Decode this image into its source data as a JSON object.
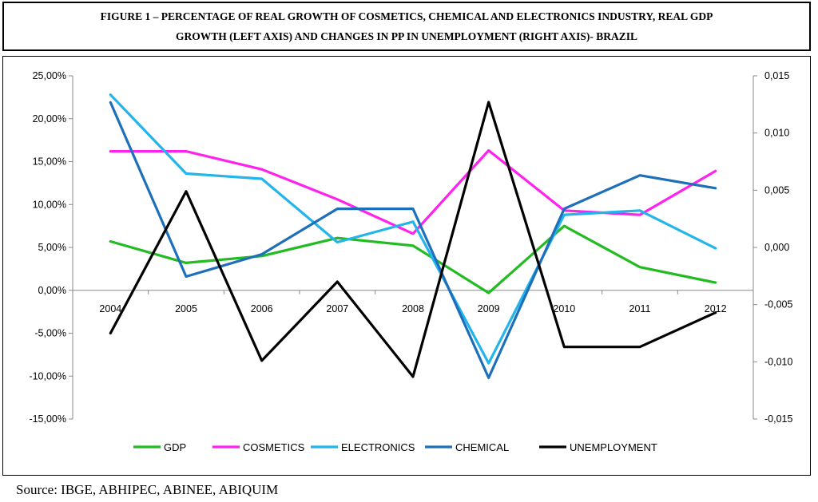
{
  "title": {
    "line1": "FIGURE 1 – PERCENTAGE OF REAL GROWTH OF COSMETICS, CHEMICAL AND ELECTRONICS INDUSTRY, REAL GDP",
    "line2": "GROWTH (LEFT AXIS) AND CHANGES IN PP IN UNEMPLOYMENT (RIGHT AXIS)- BRAZIL"
  },
  "source": "Source: IBGE, ABHIPEC, ABINEE, ABIQUIM",
  "chart_data": {
    "type": "line",
    "categories": [
      "2004",
      "2005",
      "2006",
      "2007",
      "2008",
      "2009",
      "2010",
      "2011",
      "2012"
    ],
    "y_left": {
      "ylim": [
        -15,
        25
      ],
      "ticks": [
        25,
        20,
        15,
        10,
        5,
        0,
        -5,
        -10,
        -15
      ],
      "tick_labels": [
        "25,00%",
        "20,00%",
        "15,00%",
        "10,00%",
        "5,00%",
        "0,00%",
        "-5,00%",
        "-10,00%",
        "-15,00%"
      ]
    },
    "y_right": {
      "ylim": [
        -0.015,
        0.015
      ],
      "ticks": [
        0.015,
        0.01,
        0.005,
        0,
        -0.005,
        -0.01,
        -0.015
      ],
      "tick_labels": [
        "0,015",
        "0,010",
        "0,005",
        "0,000",
        "-0,005",
        "-0,010",
        "-0,015"
      ]
    },
    "grid": false,
    "legend_position": "bottom",
    "series": [
      {
        "name": "GDP",
        "axis": "left",
        "color": "#22bb22",
        "values": [
          5.7,
          3.2,
          4.0,
          6.1,
          5.2,
          -0.3,
          7.5,
          2.7,
          0.9
        ]
      },
      {
        "name": "COSMETICS",
        "axis": "left",
        "color": "#ff22ee",
        "values": [
          16.2,
          16.2,
          14.1,
          10.6,
          6.6,
          16.3,
          9.3,
          8.8,
          13.9
        ]
      },
      {
        "name": "ELECTRONICS",
        "axis": "left",
        "color": "#22b4ea",
        "values": [
          22.8,
          13.6,
          13.0,
          5.6,
          8.0,
          -8.5,
          8.8,
          9.3,
          4.9
        ]
      },
      {
        "name": "CHEMICAL",
        "axis": "left",
        "color": "#1d6fba",
        "values": [
          21.9,
          1.6,
          4.2,
          9.5,
          9.5,
          -10.2,
          9.5,
          13.4,
          11.9
        ]
      },
      {
        "name": "UNEMPLOYMENT",
        "axis": "right",
        "color": "#000000",
        "values": [
          -0.0075,
          0.0049,
          -0.0099,
          -0.003,
          -0.0113,
          0.0127,
          -0.0087,
          -0.0087,
          -0.0057
        ]
      }
    ]
  }
}
